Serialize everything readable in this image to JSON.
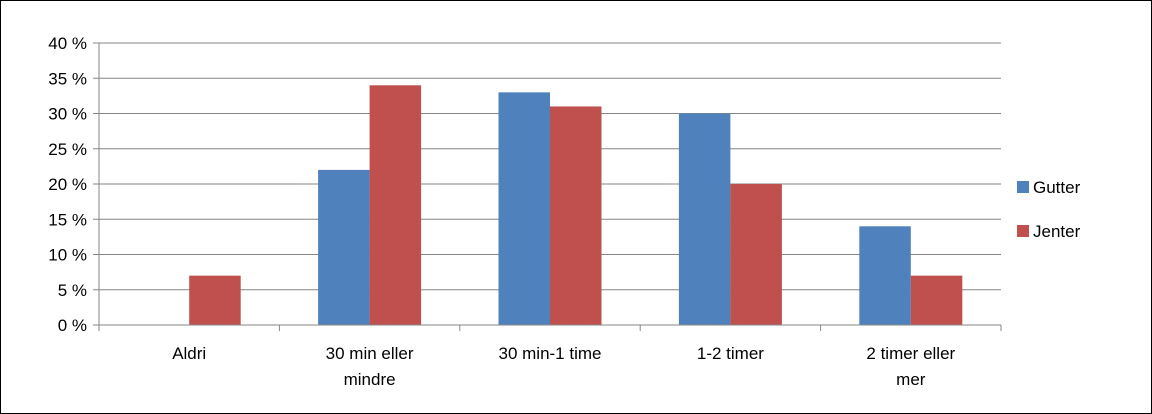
{
  "chart_data": {
    "type": "bar",
    "categories": [
      [
        "Aldri"
      ],
      [
        "30 min eller",
        "mindre"
      ],
      [
        "30 min-1 time"
      ],
      [
        "1-2 timer"
      ],
      [
        "2 timer eller",
        "mer"
      ]
    ],
    "series": [
      {
        "name": "Gutter",
        "color": "#4F81BD",
        "values": [
          0,
          22,
          33,
          30,
          14
        ]
      },
      {
        "name": "Jenter",
        "color": "#C0504D",
        "values": [
          7,
          34,
          31,
          20,
          7
        ]
      }
    ],
    "ylim": [
      0,
      40
    ],
    "yticks": [
      0,
      5,
      10,
      15,
      20,
      25,
      30,
      35,
      40
    ],
    "ytick_labels": [
      "0 %",
      "5 %",
      "10 %",
      "15 %",
      "20 %",
      "25 %",
      "30 %",
      "35 %",
      "40 %"
    ],
    "grid": true,
    "legend_position": "right"
  }
}
